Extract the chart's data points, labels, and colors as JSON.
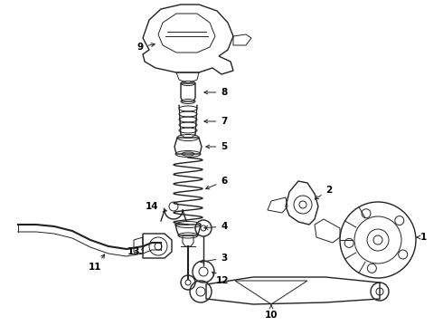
{
  "background_color": "#ffffff",
  "line_color": "#222222",
  "label_color": "#000000",
  "fig_width": 4.9,
  "fig_height": 3.6,
  "dpi": 100
}
